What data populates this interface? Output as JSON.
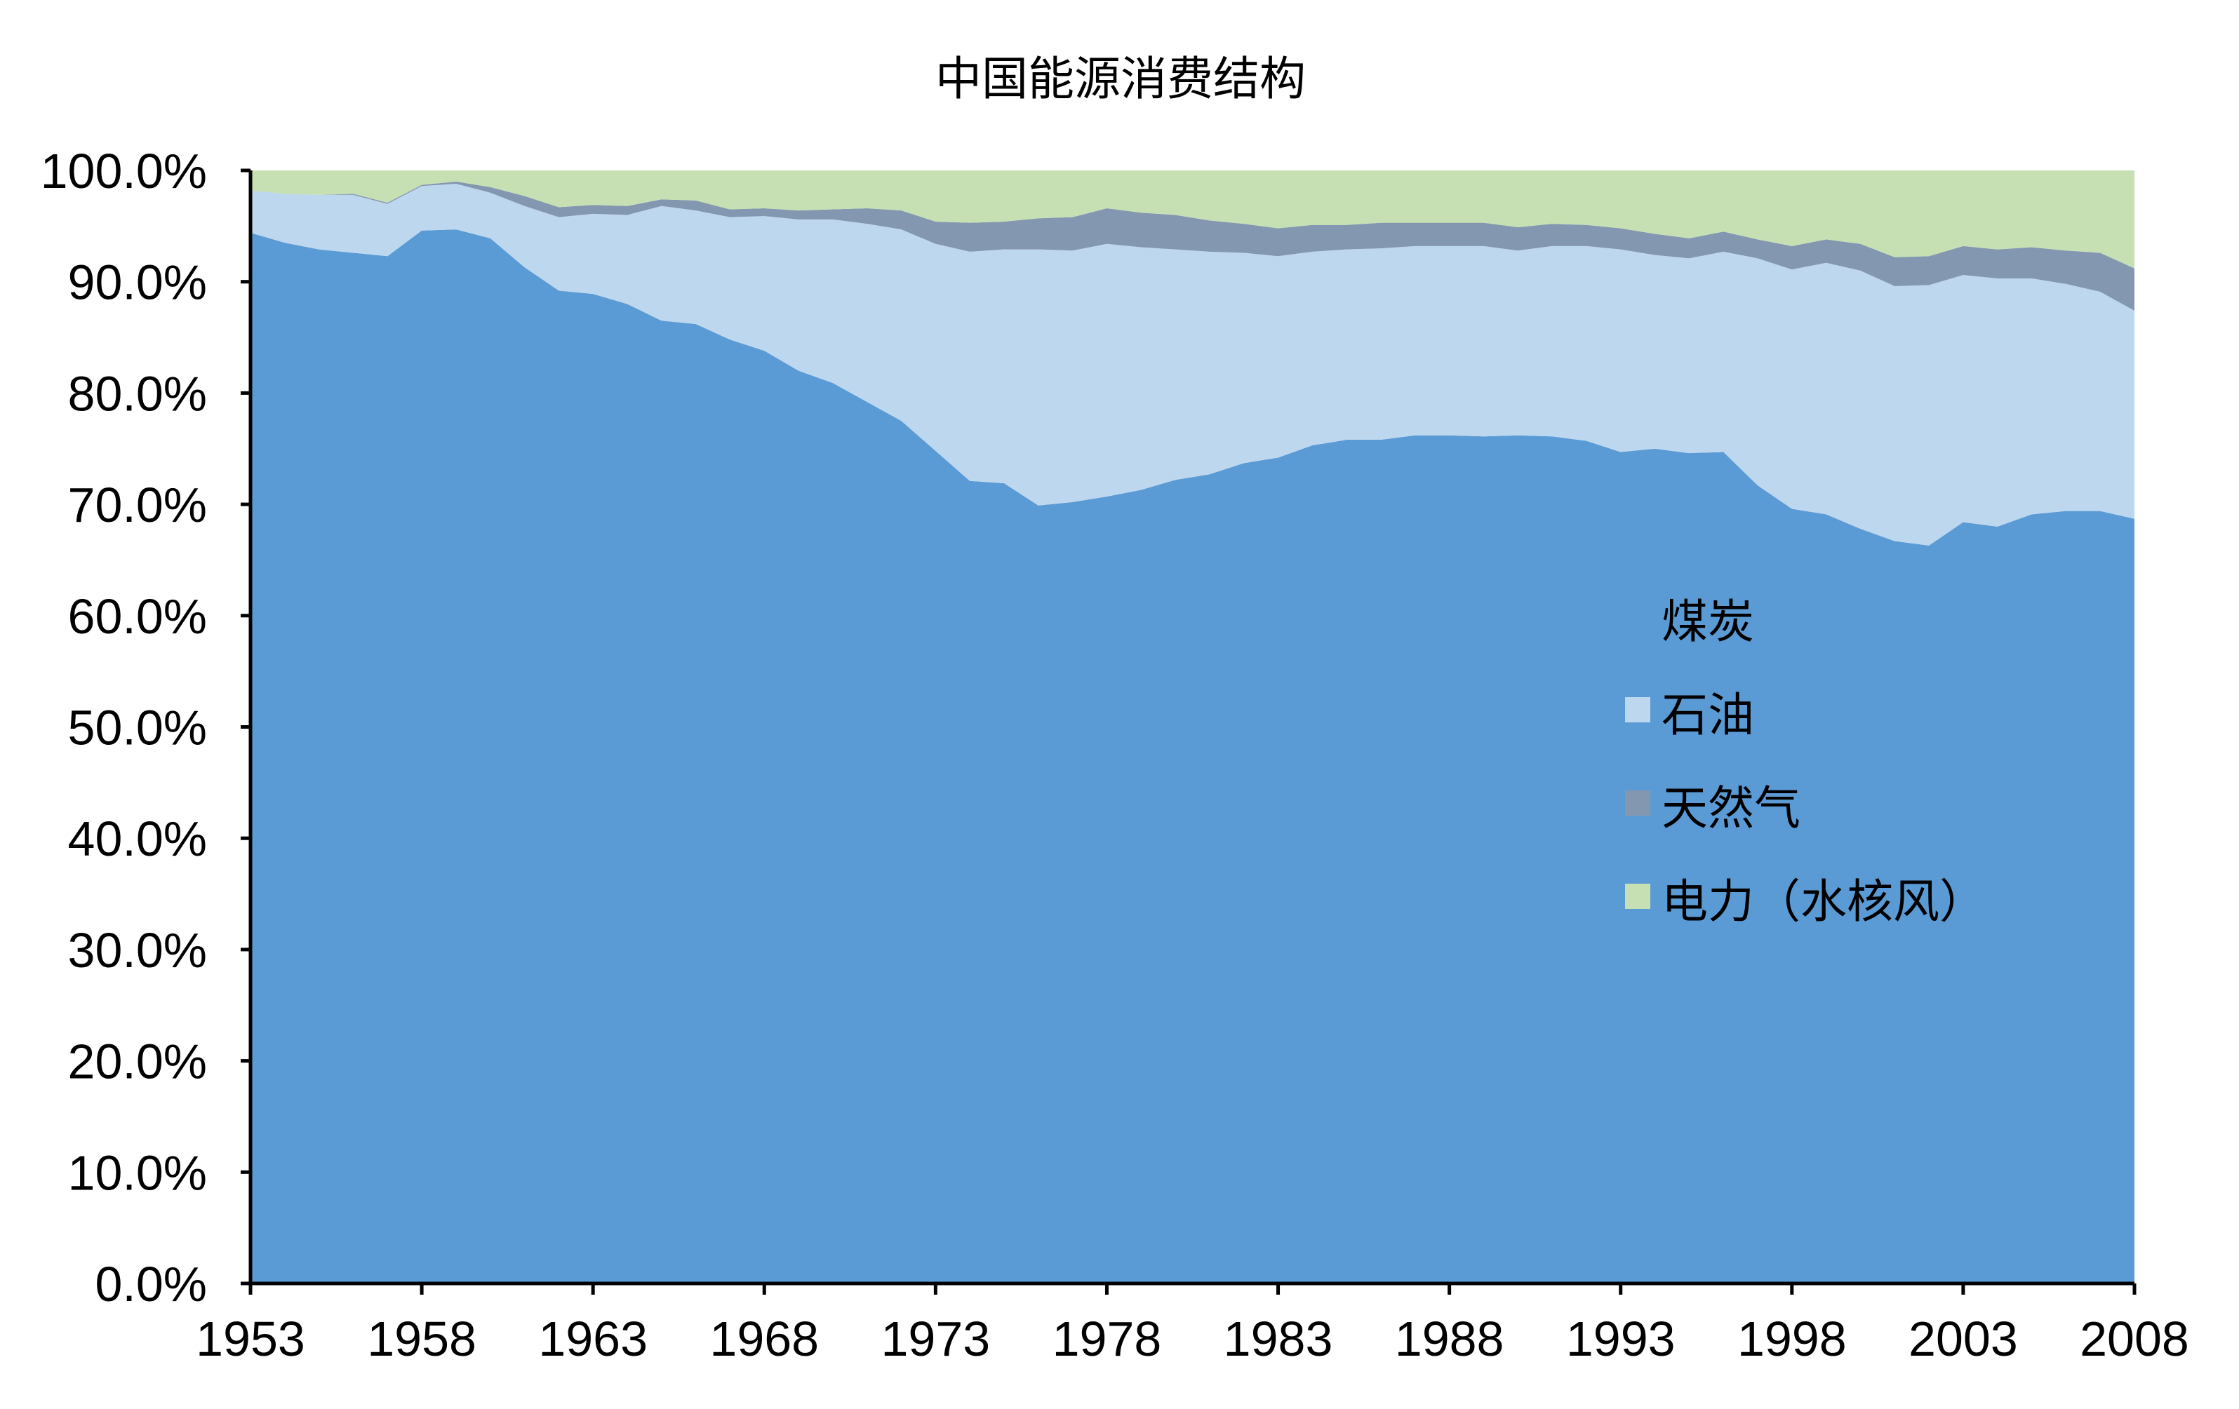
{
  "chart_data": {
    "type": "area",
    "stacked": true,
    "title": "中国能源消费结构",
    "xlabel": "",
    "ylabel": "",
    "xlim": [
      1953,
      2008
    ],
    "ylim": [
      0,
      100
    ],
    "y_ticks": [
      "0.0%",
      "10.0%",
      "20.0%",
      "30.0%",
      "40.0%",
      "50.0%",
      "60.0%",
      "70.0%",
      "80.0%",
      "90.0%",
      "100.0%"
    ],
    "x_ticks": [
      "1953",
      "1958",
      "1963",
      "1968",
      "1973",
      "1978",
      "1983",
      "1988",
      "1993",
      "1998",
      "2003",
      "2008"
    ],
    "legend_position": "center-right",
    "grid": false,
    "x": [
      1953,
      1954,
      1955,
      1956,
      1957,
      1958,
      1959,
      1960,
      1961,
      1962,
      1963,
      1964,
      1965,
      1966,
      1967,
      1968,
      1969,
      1970,
      1971,
      1972,
      1973,
      1974,
      1975,
      1976,
      1977,
      1978,
      1979,
      1980,
      1981,
      1982,
      1983,
      1984,
      1985,
      1986,
      1987,
      1988,
      1989,
      1990,
      1991,
      1992,
      1993,
      1994,
      1995,
      1996,
      1997,
      1998,
      1999,
      2000,
      2001,
      2002,
      2003,
      2004,
      2005,
      2006,
      2007,
      2008
    ],
    "series": [
      {
        "name": "煤炭",
        "color": "#5b9bd5",
        "values": [
          94.4,
          93.5,
          92.9,
          92.6,
          92.3,
          94.6,
          94.7,
          93.9,
          91.3,
          89.2,
          88.9,
          88.0,
          86.5,
          86.2,
          84.8,
          83.8,
          82.0,
          80.9,
          79.2,
          77.5,
          74.8,
          72.1,
          71.9,
          69.9,
          70.2,
          70.7,
          71.3,
          72.2,
          72.7,
          73.7,
          74.2,
          75.3,
          75.8,
          75.8,
          76.2,
          76.2,
          76.1,
          76.2,
          76.1,
          75.7,
          74.7,
          75.0,
          74.6,
          74.7,
          71.7,
          69.6,
          69.1,
          67.8,
          66.7,
          66.3,
          68.4,
          68.0,
          69.1,
          69.4,
          69.4,
          68.7
        ]
      },
      {
        "name": "石油",
        "color": "#bdd7ee",
        "values": [
          3.8,
          4.4,
          4.9,
          5.2,
          4.7,
          4.0,
          4.1,
          4.1,
          5.5,
          6.6,
          7.2,
          8.0,
          10.3,
          10.2,
          11.0,
          12.1,
          13.6,
          14.7,
          16.0,
          17.2,
          18.6,
          20.6,
          21.0,
          23.0,
          22.6,
          22.7,
          21.8,
          20.7,
          20.0,
          18.9,
          18.1,
          17.4,
          17.1,
          17.2,
          17.0,
          17.0,
          17.1,
          16.6,
          17.1,
          17.5,
          18.2,
          17.4,
          17.5,
          18.0,
          20.4,
          21.5,
          22.6,
          23.2,
          22.9,
          23.4,
          22.2,
          22.3,
          21.2,
          20.4,
          19.7,
          18.7
        ]
      },
      {
        "name": "天然气",
        "color": "#8497b0",
        "values": [
          0.0,
          0.0,
          0.0,
          0.1,
          0.1,
          0.1,
          0.2,
          0.5,
          0.9,
          0.9,
          0.8,
          0.8,
          0.6,
          0.9,
          0.7,
          0.7,
          0.8,
          0.9,
          1.4,
          1.7,
          2.0,
          2.6,
          2.5,
          2.8,
          3.0,
          3.2,
          3.1,
          3.1,
          2.8,
          2.6,
          2.5,
          2.4,
          2.2,
          2.3,
          2.1,
          2.1,
          2.1,
          2.1,
          2.0,
          1.9,
          1.9,
          1.9,
          1.8,
          1.8,
          1.7,
          2.1,
          2.1,
          2.4,
          2.6,
          2.6,
          2.6,
          2.6,
          2.8,
          3.0,
          3.5,
          3.8
        ]
      },
      {
        "name": "电力（水核风）",
        "color": "#c6e0b4",
        "values": [
          1.8,
          2.1,
          2.2,
          2.1,
          2.9,
          1.3,
          1.0,
          1.5,
          2.3,
          3.3,
          3.1,
          3.2,
          2.6,
          2.7,
          3.5,
          3.4,
          3.6,
          3.5,
          3.4,
          3.6,
          4.6,
          4.7,
          4.6,
          4.3,
          4.2,
          3.4,
          3.8,
          4.0,
          4.5,
          4.8,
          5.2,
          4.9,
          4.9,
          4.7,
          4.7,
          4.7,
          4.7,
          5.1,
          4.8,
          4.9,
          5.2,
          5.7,
          6.1,
          5.5,
          6.2,
          6.8,
          6.2,
          6.6,
          7.8,
          7.7,
          6.8,
          7.1,
          6.9,
          7.2,
          7.4,
          8.8
        ]
      }
    ]
  }
}
